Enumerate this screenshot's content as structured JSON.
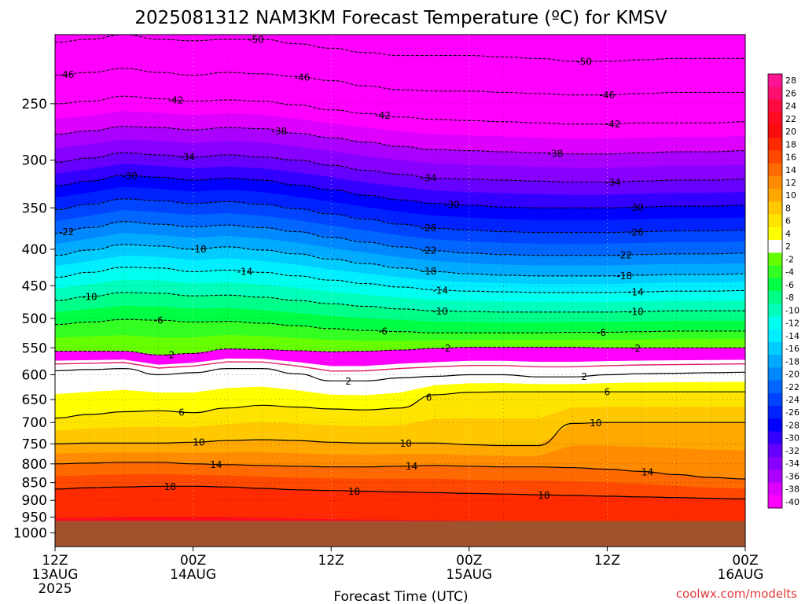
{
  "chart_data": {
    "type": "heatmap",
    "title": "2025081312 NAM3KM Forecast Temperature (ºC) for KMSV",
    "xlabel": "Forecast Time (UTC)",
    "ylabel": "",
    "credit": "coolwx.com/modelts",
    "y_axis": {
      "scale": "log",
      "range": [
        1045,
        200
      ],
      "ticks": [
        "250",
        "300",
        "350",
        "400",
        "450",
        "500",
        "550",
        "600",
        "650",
        "700",
        "750",
        "800",
        "850",
        "900",
        "950",
        "1000"
      ]
    },
    "y_tick_values": [
      250,
      300,
      350,
      400,
      450,
      500,
      550,
      600,
      650,
      700,
      750,
      800,
      850,
      900,
      950,
      1000
    ],
    "x_axis": {
      "range_hours": [
        0,
        60
      ]
    },
    "x_ticks": [
      {
        "hour": 0,
        "line1": "12Z",
        "line2": "13AUG",
        "line3": "2025"
      },
      {
        "hour": 12,
        "line1": "00Z",
        "line2": "14AUG",
        "line3": ""
      },
      {
        "hour": 24,
        "line1": "12Z",
        "line2": "",
        "line3": ""
      },
      {
        "hour": 36,
        "line1": "00Z",
        "line2": "15AUG",
        "line3": ""
      },
      {
        "hour": 48,
        "line1": "12Z",
        "line2": "",
        "line3": ""
      },
      {
        "hour": 60,
        "line1": "00Z",
        "line2": "16AUG",
        "line3": ""
      }
    ],
    "colorbar": {
      "labels": [
        "28",
        "26",
        "24",
        "22",
        "20",
        "18",
        "16",
        "14",
        "12",
        "10",
        "8",
        "6",
        "4",
        "2",
        "-2",
        "-4",
        "-6",
        "-8",
        "-10",
        "-12",
        "-14",
        "-16",
        "-18",
        "-20",
        "-22",
        "-24",
        "-26",
        "-28",
        "-30",
        "-32",
        "-34",
        "-36",
        "-38",
        "-40"
      ],
      "colors": [
        "#ff1493",
        "#ff1070",
        "#ff0a40",
        "#ff0a20",
        "#f80c0c",
        "#ff2a00",
        "#ff4800",
        "#ff6a00",
        "#ff8c00",
        "#ffa800",
        "#ffc800",
        "#ffe400",
        "#ffff00",
        "#ffffff",
        "#66ff00",
        "#33ff22",
        "#00ff44",
        "#00ff88",
        "#00ffbb",
        "#00ffee",
        "#00eeff",
        "#00ccff",
        "#00aaff",
        "#0088ff",
        "#0066ff",
        "#0044ff",
        "#0022ff",
        "#0000ff",
        "#3300ff",
        "#6600ff",
        "#8800ff",
        "#aa00ff",
        "#dd00ff",
        "#ff00ff"
      ]
    },
    "ground": {
      "pressure_hpa": 962,
      "color": "#a0522d"
    },
    "isotherm_samples_hours": [
      0,
      3,
      6,
      9,
      12,
      15,
      18,
      21,
      24,
      27,
      30,
      33,
      36,
      39,
      42,
      45,
      48,
      51,
      54,
      57,
      60
    ],
    "isotherms": [
      {
        "t": -50,
        "p": [
          205,
          203,
          200,
          203,
          204,
          203,
          203,
          206,
          209,
          212,
          214,
          214,
          214,
          215,
          216,
          218,
          218,
          217,
          216,
          216,
          216
        ]
      },
      {
        "t": -46,
        "p": [
          228,
          226,
          223,
          226,
          228,
          226,
          227,
          229,
          232,
          236,
          239,
          240,
          240,
          241,
          242,
          243,
          243,
          242,
          241,
          241,
          241
        ]
      },
      {
        "t": -42,
        "p": [
          250,
          248,
          244,
          246,
          248,
          247,
          248,
          251,
          255,
          258,
          261,
          263,
          264,
          265,
          266,
          267,
          267,
          266,
          266,
          266,
          265
        ]
      },
      {
        "t": -38,
        "p": [
          276,
          273,
          269,
          270,
          272,
          270,
          271,
          275,
          279,
          283,
          287,
          290,
          291,
          292,
          293,
          294,
          294,
          293,
          292,
          292,
          291
        ]
      },
      {
        "t": -34,
        "p": [
          302,
          298,
          293,
          295,
          297,
          295,
          297,
          300,
          305,
          310,
          314,
          318,
          319,
          320,
          321,
          322,
          322,
          321,
          320,
          320,
          319
        ]
      },
      {
        "t": -30,
        "p": [
          326,
          321,
          315,
          317,
          320,
          318,
          320,
          325,
          330,
          336,
          341,
          345,
          347,
          349,
          350,
          350,
          350,
          349,
          348,
          348,
          347
        ]
      },
      {
        "t": -26,
        "p": [
          352,
          346,
          340,
          342,
          345,
          343,
          346,
          351,
          357,
          363,
          369,
          374,
          376,
          378,
          379,
          379,
          379,
          378,
          377,
          377,
          376
        ]
      },
      {
        "t": -22,
        "p": [
          380,
          373,
          366,
          369,
          372,
          370,
          373,
          378,
          385,
          391,
          397,
          402,
          405,
          407,
          408,
          408,
          408,
          407,
          406,
          406,
          405
        ]
      },
      {
        "t": -18,
        "p": [
          408,
          401,
          394,
          396,
          400,
          397,
          401,
          406,
          413,
          419,
          425,
          430,
          433,
          435,
          436,
          436,
          436,
          435,
          434,
          434,
          433
        ]
      },
      {
        "t": -14,
        "p": [
          438,
          431,
          424,
          425,
          430,
          428,
          431,
          436,
          442,
          447,
          452,
          456,
          458,
          459,
          460,
          460,
          460,
          459,
          458,
          458,
          457
        ]
      },
      {
        "t": -10,
        "p": [
          472,
          466,
          460,
          461,
          465,
          464,
          467,
          472,
          477,
          481,
          485,
          488,
          489,
          490,
          490,
          490,
          490,
          489,
          488,
          488,
          488
        ]
      },
      {
        "t": -6,
        "p": [
          510,
          506,
          502,
          503,
          506,
          505,
          508,
          512,
          517,
          520,
          522,
          524,
          524,
          524,
          524,
          523,
          523,
          522,
          521,
          521,
          521
        ]
      },
      {
        "t": -2,
        "p": [
          556,
          556,
          556,
          563,
          560,
          552,
          553,
          555,
          557,
          556,
          554,
          551,
          549,
          549,
          549,
          549,
          550,
          550,
          550,
          550,
          550
        ]
      },
      {
        "t": 2,
        "p": [
          592,
          590,
          588,
          600,
          596,
          588,
          588,
          598,
          612,
          612,
          606,
          603,
          600,
          600,
          604,
          604,
          600,
          598,
          597,
          596,
          595
        ]
      },
      {
        "t": 6,
        "p": [
          690,
          682,
          676,
          674,
          678,
          668,
          662,
          666,
          670,
          672,
          668,
          640,
          635,
          634,
          634,
          634,
          634,
          634,
          634,
          634,
          634
        ]
      },
      {
        "t": 10,
        "p": [
          750,
          748,
          748,
          748,
          746,
          742,
          740,
          742,
          746,
          748,
          748,
          748,
          752,
          754,
          754,
          702,
          700,
          700,
          700,
          700,
          700
        ]
      },
      {
        "t": 14,
        "p": [
          800,
          798,
          796,
          796,
          800,
          802,
          804,
          806,
          808,
          808,
          806,
          804,
          806,
          808,
          808,
          810,
          814,
          820,
          828,
          836,
          840
        ]
      },
      {
        "t": 18,
        "p": [
          868,
          864,
          862,
          860,
          860,
          862,
          866,
          870,
          872,
          874,
          876,
          878,
          880,
          882,
          884,
          886,
          888,
          890,
          892,
          894,
          896
        ]
      }
    ],
    "isotherm_labels": [
      {
        "t": -50,
        "hour": 17.5
      },
      {
        "t": -50,
        "hour": 46
      },
      {
        "t": -46,
        "hour": 1
      },
      {
        "t": -46,
        "hour": 21.5
      },
      {
        "t": -46,
        "hour": 48
      },
      {
        "t": -42,
        "hour": 10.5
      },
      {
        "t": -42,
        "hour": 28.5
      },
      {
        "t": -42,
        "hour": 48.5
      },
      {
        "t": -38,
        "hour": 19.5
      },
      {
        "t": -38,
        "hour": 43.5
      },
      {
        "t": -34,
        "hour": 11.5
      },
      {
        "t": -34,
        "hour": 32.5
      },
      {
        "t": -34,
        "hour": 48.5
      },
      {
        "t": -30,
        "hour": 6.5
      },
      {
        "t": -30,
        "hour": 34.5
      },
      {
        "t": -30,
        "hour": 50.5
      },
      {
        "t": -26,
        "hour": 32.5
      },
      {
        "t": -26,
        "hour": 50.5
      },
      {
        "t": -22,
        "hour": 1
      },
      {
        "t": -22,
        "hour": 32.5
      },
      {
        "t": -22,
        "hour": 49.5
      },
      {
        "t": -18,
        "hour": 12.5
      },
      {
        "t": -18,
        "hour": 32.5
      },
      {
        "t": -18,
        "hour": 49.5
      },
      {
        "t": -14,
        "hour": 16.5
      },
      {
        "t": -14,
        "hour": 33.5
      },
      {
        "t": -14,
        "hour": 50.5
      },
      {
        "t": -10,
        "hour": 3
      },
      {
        "t": -10,
        "hour": 33.5
      },
      {
        "t": -10,
        "hour": 50.5
      },
      {
        "t": -6,
        "hour": 9
      },
      {
        "t": -6,
        "hour": 28.5
      },
      {
        "t": -6,
        "hour": 47.5
      },
      {
        "t": -2,
        "hour": 10
      },
      {
        "t": -2,
        "hour": 34
      },
      {
        "t": -2,
        "hour": 50.5
      },
      {
        "t": 2,
        "hour": 25.5
      },
      {
        "t": 2,
        "hour": 46
      },
      {
        "t": 6,
        "hour": 11
      },
      {
        "t": 6,
        "hour": 32.5
      },
      {
        "t": 6,
        "hour": 48
      },
      {
        "t": 10,
        "hour": 12.5
      },
      {
        "t": 10,
        "hour": 30.5
      },
      {
        "t": 10,
        "hour": 47
      },
      {
        "t": 14,
        "hour": 14
      },
      {
        "t": 14,
        "hour": 31
      },
      {
        "t": 14,
        "hour": 51.5
      },
      {
        "t": 18,
        "hour": 10
      },
      {
        "t": 18,
        "hour": 26
      },
      {
        "t": 18,
        "hour": 42.5
      }
    ]
  }
}
